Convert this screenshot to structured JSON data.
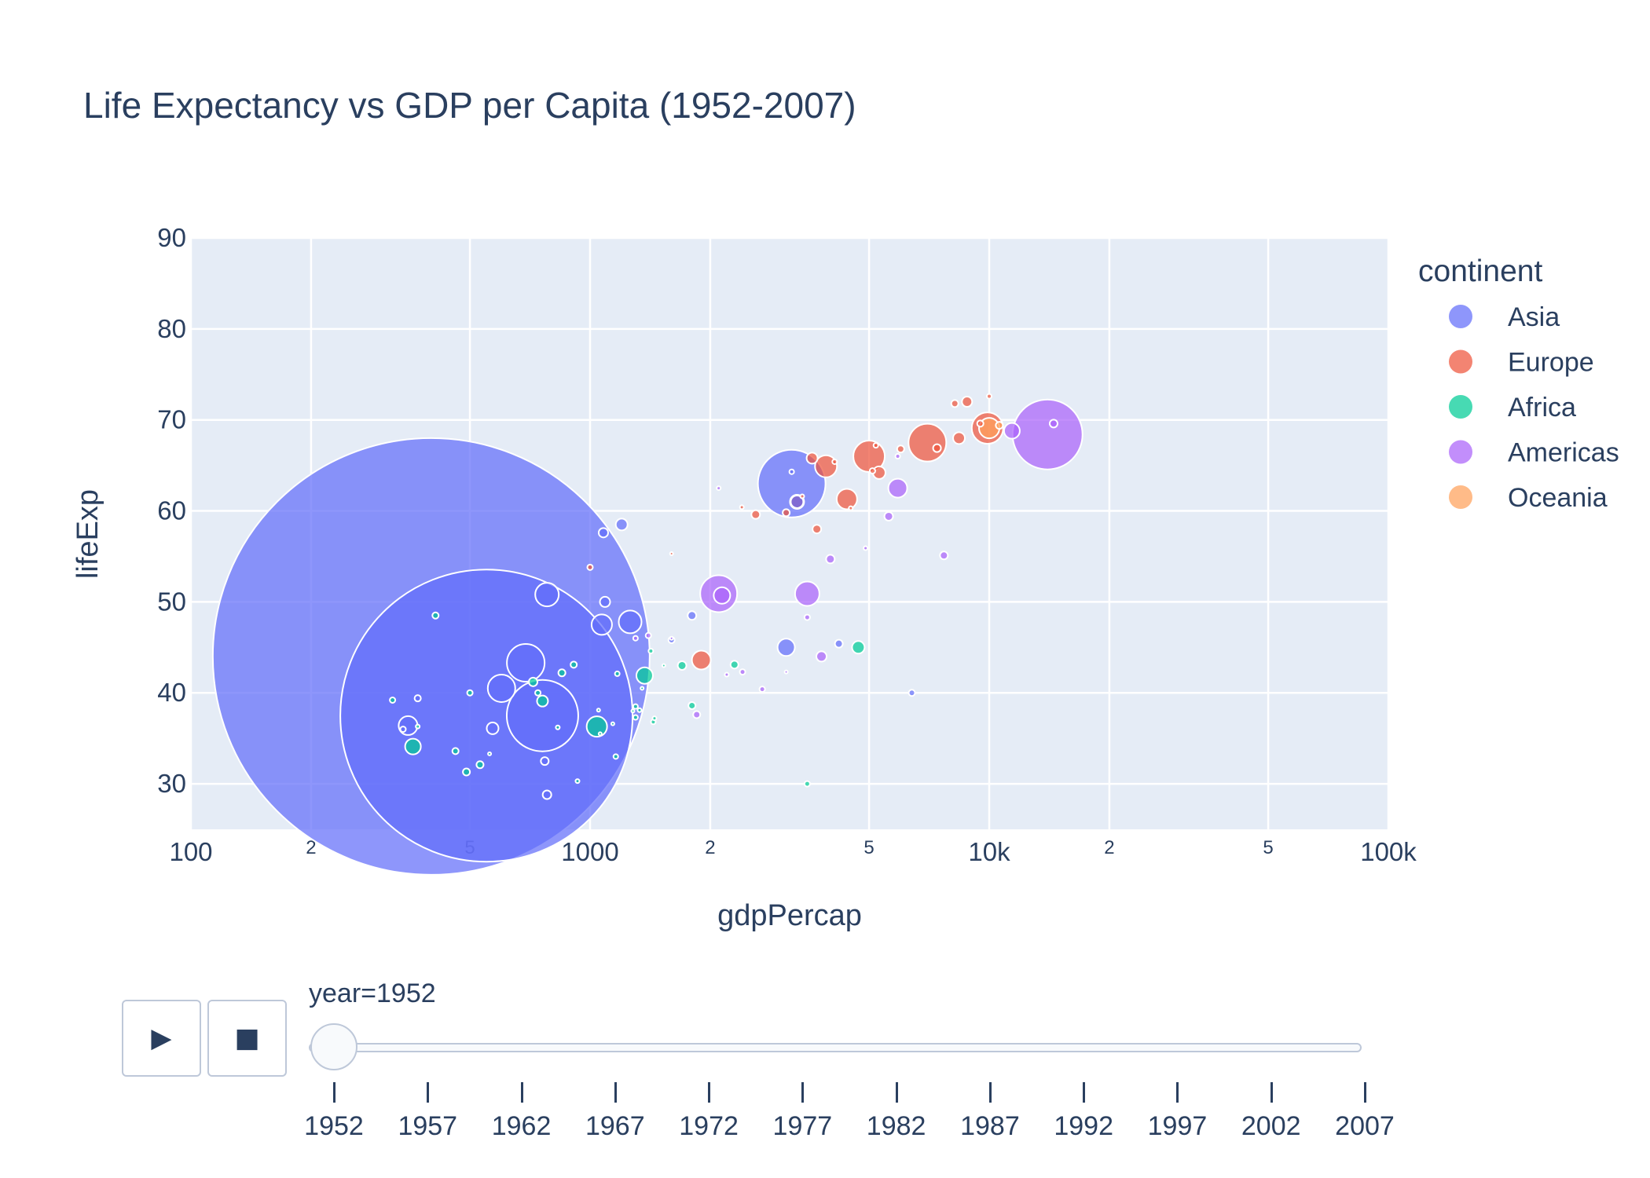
{
  "chart_data": {
    "type": "scatter",
    "title": "Life Expectancy vs GDP per Capita (1952-2007)",
    "xlabel": "gdpPercap",
    "ylabel": "lifeExp",
    "x_scale": "log",
    "xlim": [
      100,
      100000
    ],
    "ylim": [
      25,
      90
    ],
    "grid": true,
    "x_ticks": [
      "100",
      "1000",
      "10k",
      "100k"
    ],
    "x_minor_ticks": [
      "2",
      "5",
      "2",
      "5",
      "2",
      "5"
    ],
    "y_ticks": [
      "30",
      "40",
      "50",
      "60",
      "70",
      "80",
      "90"
    ],
    "legend_title": "continent",
    "legend_position": "right",
    "series": [
      {
        "name": "Asia",
        "color": "#636efa",
        "points": [
          [
            400,
            44,
            556
          ],
          [
            550,
            37.5,
            372
          ],
          [
            760,
            37.5,
            91
          ],
          [
            3200,
            63,
            86
          ],
          [
            690,
            43.3,
            48
          ],
          [
            600,
            40.5,
            35
          ],
          [
            780,
            50.8,
            30
          ],
          [
            1260,
            47.8,
            29
          ],
          [
            1070,
            47.5,
            26
          ],
          [
            350,
            36.4,
            24
          ],
          [
            3100,
            45,
            22
          ],
          [
            570,
            36.1,
            15
          ],
          [
            1200,
            58.5,
            15
          ],
          [
            1080,
            57.6,
            12
          ],
          [
            1090,
            50,
            13
          ],
          [
            3300,
            61,
            16
          ],
          [
            3200,
            64.3,
            6
          ],
          [
            4200,
            45.4,
            10
          ],
          [
            1800,
            48.5,
            11
          ],
          [
            1600,
            45.8,
            8
          ],
          [
            6400,
            40,
            8
          ],
          [
            770,
            32.5,
            10
          ],
          [
            780,
            28.8,
            11
          ],
          [
            370,
            39.4,
            8
          ],
          [
            340,
            36,
            7
          ]
        ]
      },
      {
        "name": "Europe",
        "color": "#EF553B",
        "points": [
          [
            7000,
            67.5,
            48
          ],
          [
            5000,
            66,
            40
          ],
          [
            9900,
            69.1,
            40
          ],
          [
            3900,
            64.9,
            28
          ],
          [
            4400,
            61.3,
            26
          ],
          [
            3300,
            61,
            18
          ],
          [
            8400,
            68,
            15
          ],
          [
            3600,
            65.8,
            14
          ],
          [
            8800,
            72,
            13
          ],
          [
            5300,
            64.2,
            16
          ],
          [
            1900,
            43.6,
            24
          ],
          [
            8200,
            71.8,
            9
          ],
          [
            2600,
            59.6,
            11
          ],
          [
            3700,
            58,
            11
          ],
          [
            7400,
            66.9,
            10
          ],
          [
            6000,
            66.8,
            9
          ],
          [
            3100,
            59.8,
            9
          ],
          [
            4100,
            65.4,
            6
          ],
          [
            10000,
            72.6,
            6
          ],
          [
            5100,
            64.4,
            7
          ],
          [
            5200,
            67.2,
            6
          ],
          [
            9500,
            69.6,
            8
          ],
          [
            1000,
            53.8,
            7
          ],
          [
            2400,
            60.4,
            5
          ],
          [
            3400,
            61.6,
            5
          ],
          [
            1600,
            55.3,
            4
          ],
          [
            4500,
            60.3,
            5
          ]
        ]
      },
      {
        "name": "Africa",
        "color": "#00cc96",
        "points": [
          [
            1040,
            36.3,
            26
          ],
          [
            1370,
            41.9,
            21
          ],
          [
            360,
            34.1,
            20
          ],
          [
            4700,
            45,
            16
          ],
          [
            760,
            39.1,
            14
          ],
          [
            720,
            41.2,
            11
          ],
          [
            1700,
            43,
            11
          ],
          [
            2300,
            43.1,
            10
          ],
          [
            850,
            42.2,
            9
          ],
          [
            1800,
            38.6,
            9
          ],
          [
            910,
            43.1,
            8
          ],
          [
            740,
            40,
            7
          ],
          [
            460,
            33.6,
            8
          ],
          [
            490,
            31.3,
            9
          ],
          [
            530,
            32.1,
            9
          ],
          [
            1300,
            38.5,
            6
          ],
          [
            3500,
            30,
            7
          ],
          [
            1300,
            37.3,
            6
          ],
          [
            1170,
            42.1,
            6
          ],
          [
            1420,
            44.6,
            6
          ],
          [
            1160,
            33,
            6
          ],
          [
            830,
            36.2,
            5
          ],
          [
            320,
            39.2,
            7
          ],
          [
            410,
            48.5,
            8
          ],
          [
            500,
            40,
            7
          ],
          [
            930,
            30.3,
            5
          ],
          [
            370,
            36.3,
            5
          ],
          [
            1440,
            36.8,
            6
          ],
          [
            1050,
            38.1,
            4
          ],
          [
            1140,
            36.6,
            4
          ],
          [
            1330,
            38.1,
            5
          ],
          [
            1060,
            35.5,
            4
          ],
          [
            1350,
            40.5,
            4
          ],
          [
            1450,
            37.2,
            5
          ],
          [
            560,
            33.3,
            4
          ],
          [
            1530,
            43,
            4
          ],
          [
            1280,
            38,
            4
          ]
        ]
      },
      {
        "name": "Americas",
        "color": "#ab63fa",
        "points": [
          [
            14000,
            68.4,
            89
          ],
          [
            2100,
            50.9,
            47
          ],
          [
            3500,
            50.9,
            31
          ],
          [
            5900,
            62.5,
            24
          ],
          [
            11400,
            68.8,
            20
          ],
          [
            2140,
            50.7,
            21
          ],
          [
            3800,
            44,
            13
          ],
          [
            5600,
            59.4,
            11
          ],
          [
            7700,
            55.1,
            10
          ],
          [
            4000,
            54.7,
            11
          ],
          [
            1300,
            46,
            6
          ],
          [
            1400,
            46.3,
            7
          ],
          [
            1850,
            37.6,
            9
          ],
          [
            2410,
            42.3,
            7
          ],
          [
            2700,
            40.4,
            7
          ],
          [
            3500,
            48.3,
            7
          ],
          [
            5900,
            66,
            6
          ],
          [
            14500,
            69.6,
            10
          ],
          [
            2100,
            62.5,
            5
          ],
          [
            4900,
            55.9,
            5
          ],
          [
            1600,
            46,
            4
          ],
          [
            2200,
            42,
            5
          ],
          [
            3100,
            42.3,
            4
          ]
        ]
      },
      {
        "name": "Oceania",
        "color": "#FFA15A",
        "points": [
          [
            10000,
            69.1,
            26
          ],
          [
            10600,
            69.4,
            9
          ]
        ]
      }
    ]
  },
  "slider": {
    "current_label": "year=1952",
    "current_index": 0,
    "play_icon": "play-icon",
    "stop_icon": "stop-icon",
    "play_glyph": "▶",
    "stop_glyph": "■",
    "steps": [
      "1952",
      "1957",
      "1962",
      "1967",
      "1972",
      "1977",
      "1982",
      "1987",
      "1992",
      "1997",
      "2002",
      "2007"
    ]
  }
}
